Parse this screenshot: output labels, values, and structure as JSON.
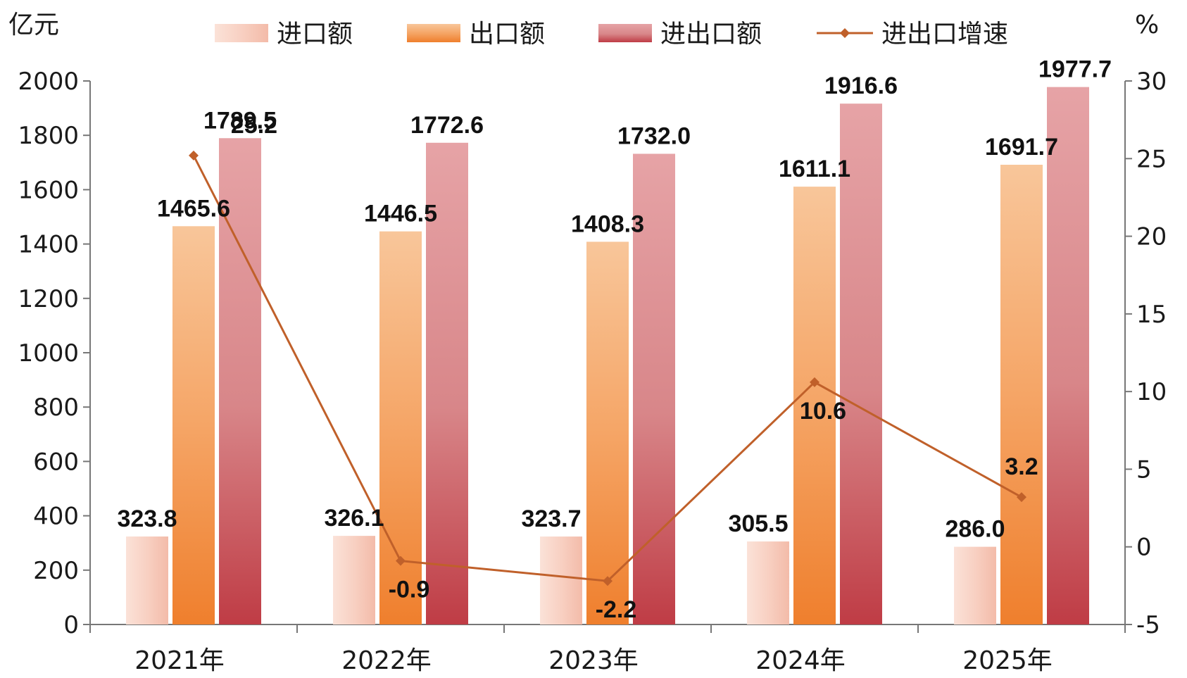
{
  "chart_data": {
    "type": "bar",
    "categories": [
      "2021年",
      "2022年",
      "2023年",
      "2024年",
      "2025年"
    ],
    "series": [
      {
        "name": "进口额",
        "type": "bar",
        "axis": "left",
        "color": "#f6c8b8",
        "values": [
          323.8,
          326.1,
          323.7,
          305.5,
          286.0
        ]
      },
      {
        "name": "出口额",
        "type": "bar",
        "axis": "left",
        "color": "#f28a3c",
        "values": [
          1465.6,
          1446.5,
          1408.3,
          1611.1,
          1691.7
        ]
      },
      {
        "name": "进出口额",
        "type": "bar",
        "axis": "left",
        "color": "#c8505a",
        "values": [
          1789.5,
          1772.6,
          1732.0,
          1916.6,
          1977.7
        ]
      },
      {
        "name": "进出口增速",
        "type": "line",
        "axis": "right",
        "color": "#c0602a",
        "values": [
          25.2,
          -0.9,
          -2.2,
          10.6,
          3.2
        ]
      }
    ],
    "y_left": {
      "unit": "亿元",
      "min": 0,
      "max": 2000,
      "ticks": [
        0,
        200,
        400,
        600,
        800,
        1000,
        1200,
        1400,
        1600,
        1800,
        2000
      ]
    },
    "y_right": {
      "unit": "%",
      "min": -5,
      "max": 30,
      "ticks": [
        -5,
        0,
        5,
        10,
        15,
        20,
        25,
        30
      ]
    },
    "legend_position": "top",
    "grid": false
  }
}
